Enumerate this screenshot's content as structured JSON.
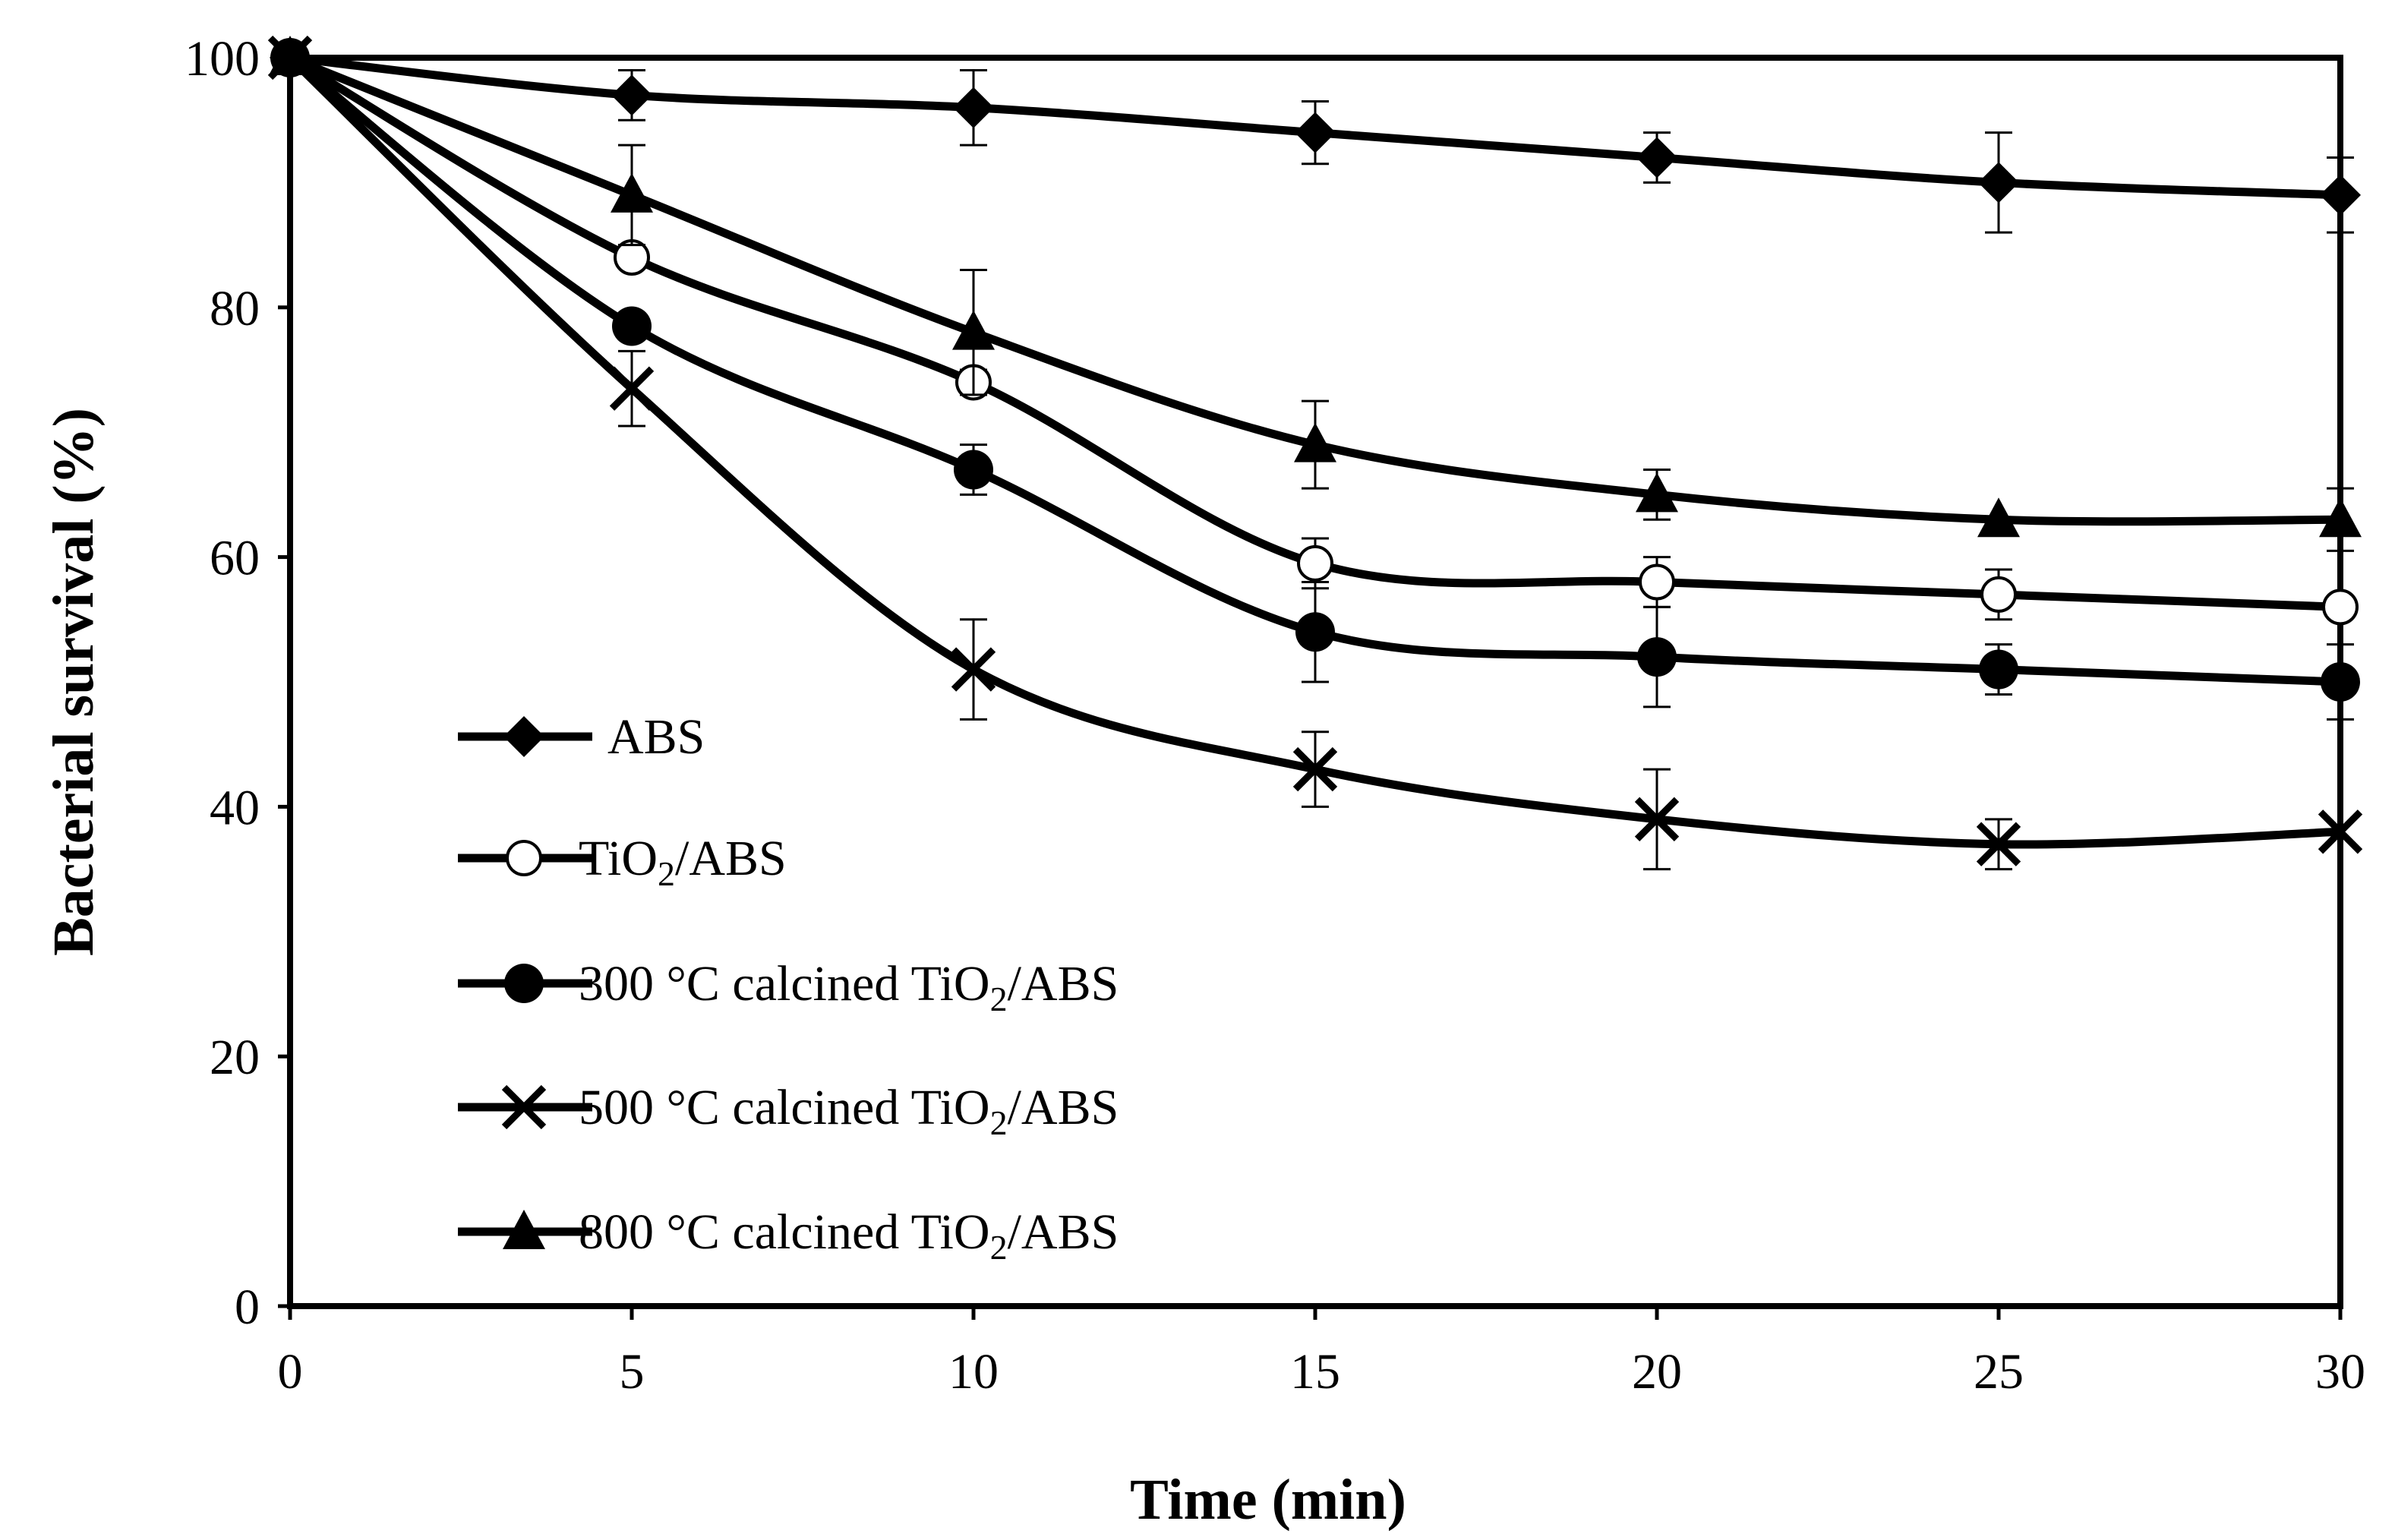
{
  "chart_data": {
    "type": "line",
    "title": "",
    "xlabel": "Time (min)",
    "ylabel": "Bacterial survival (%)",
    "x": [
      0,
      5,
      10,
      15,
      20,
      25,
      30
    ],
    "xlim": [
      0,
      30
    ],
    "ylim": [
      0,
      100
    ],
    "xticks": [
      0,
      5,
      10,
      15,
      20,
      25,
      30
    ],
    "yticks": [
      0,
      20,
      40,
      60,
      80,
      100
    ],
    "grid": false,
    "legend_position": "lower-left",
    "series": [
      {
        "name": "ABS",
        "legend": {
          "main": "ABS",
          "sub": "",
          "rest": ""
        },
        "marker": "diamond",
        "values": [
          100,
          97,
          96,
          94,
          92,
          90,
          89
        ],
        "errors": [
          0,
          2,
          3,
          2.5,
          2,
          4,
          3
        ]
      },
      {
        "name": "TiO2/ABS",
        "legend": {
          "main": "TiO",
          "sub": "2",
          "rest": "/ABS"
        },
        "marker": "open-circle",
        "values": [
          100,
          84,
          74,
          59.5,
          58,
          57,
          56
        ],
        "errors": [
          0,
          0,
          1,
          2,
          2,
          2,
          0
        ]
      },
      {
        "name": "300 °C calcined TiO2/ABS",
        "legend": {
          "main": "300 °C calcined TiO",
          "sub": "2",
          "rest": "/ABS"
        },
        "marker": "filled-circle",
        "values": [
          100,
          78.5,
          67,
          54,
          52,
          51,
          50
        ],
        "errors": [
          0,
          0,
          2,
          4,
          4,
          2,
          3
        ]
      },
      {
        "name": "500 °C calcined TiO2/ABS",
        "legend": {
          "main": "500 °C calcined TiO",
          "sub": "2",
          "rest": "/ABS"
        },
        "marker": "x",
        "values": [
          100,
          73.5,
          51,
          43,
          39,
          37,
          38
        ],
        "errors": [
          0,
          3,
          4,
          3,
          4,
          2,
          0
        ]
      },
      {
        "name": "800 °C calcined TiO2/ABS",
        "legend": {
          "main": "800 °C calcined TiO",
          "sub": "2",
          "rest": "/ABS"
        },
        "marker": "triangle",
        "values": [
          100,
          89,
          78,
          69,
          65,
          63,
          63
        ],
        "errors": [
          0,
          4,
          5,
          3.5,
          2,
          0,
          2.5
        ]
      }
    ],
    "colors": {
      "line": "#000000",
      "background": "#ffffff"
    }
  }
}
